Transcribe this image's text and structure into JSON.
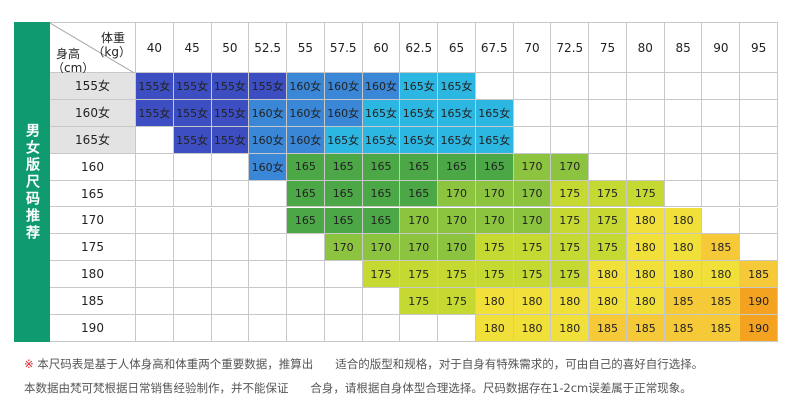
{
  "side_label": "男女版尺码推荐",
  "header": {
    "weight": "体重",
    "weight_unit": "（kg）",
    "height": "身高",
    "height_unit": "（cm）"
  },
  "weights": [
    40,
    45,
    50,
    52.5,
    55,
    57.5,
    60,
    62.5,
    65,
    67.5,
    70,
    72.5,
    75,
    80,
    85,
    90,
    95
  ],
  "rows": [
    {
      "height": "155女",
      "cells": [
        "155女",
        "155女",
        "155女",
        "155女",
        "160女",
        "160女",
        "160女",
        "165女",
        "165女",
        null,
        null,
        null,
        null,
        null,
        null,
        null,
        null
      ]
    },
    {
      "height": "160女",
      "cells": [
        "155女",
        "155女",
        "155女",
        "160女",
        "160女",
        "160女",
        "165女",
        "165女",
        "165女",
        "165女",
        null,
        null,
        null,
        null,
        null,
        null,
        null
      ]
    },
    {
      "height": "165女",
      "cells": [
        null,
        "155女",
        "155女",
        "160女",
        "160女",
        "165女",
        "165女",
        "165女",
        "165女",
        "165女",
        null,
        null,
        null,
        null,
        null,
        null,
        null
      ]
    },
    {
      "height": "160",
      "cells": [
        null,
        null,
        null,
        "160女",
        "165",
        "165",
        "165",
        "165",
        "165",
        "165",
        "170",
        "170",
        null,
        null,
        null,
        null,
        null
      ]
    },
    {
      "height": "165",
      "cells": [
        null,
        null,
        null,
        null,
        "165",
        "165",
        "165",
        "165",
        "170",
        "170",
        "170",
        "175",
        "175",
        "175",
        null,
        null,
        null
      ]
    },
    {
      "height": "170",
      "cells": [
        null,
        null,
        null,
        null,
        "165",
        "165",
        "165",
        "170",
        "170",
        "170",
        "170",
        "175",
        "175",
        "180",
        "180",
        null,
        null
      ]
    },
    {
      "height": "175",
      "cells": [
        null,
        null,
        null,
        null,
        null,
        "170",
        "170",
        "170",
        "170",
        "175",
        "175",
        "175",
        "175",
        "180",
        "180",
        "185",
        null
      ]
    },
    {
      "height": "180",
      "cells": [
        null,
        null,
        null,
        null,
        null,
        null,
        "175",
        "175",
        "175",
        "175",
        "175",
        "175",
        "180",
        "180",
        "180",
        "180",
        "185"
      ]
    },
    {
      "height": "185",
      "cells": [
        null,
        null,
        null,
        null,
        null,
        null,
        null,
        "175",
        "175",
        "180",
        "180",
        "180",
        "180",
        "180",
        "185",
        "185",
        "190"
      ]
    },
    {
      "height": "190",
      "cells": [
        null,
        null,
        null,
        null,
        null,
        null,
        null,
        null,
        null,
        "180",
        "180",
        "180",
        "185",
        "185",
        "185",
        "185",
        "190"
      ]
    }
  ],
  "cell_colors": {
    "155女": "#3c4ec2",
    "160女": "#3a87d8",
    "165女": "#2cb6e2",
    "165": "#4ca846",
    "170": "#8dc43f",
    "175": "#c6d932",
    "180": "#f1df3a",
    "185": "#f6c938",
    "190": "#f4a321"
  },
  "notes": [
    {
      "mark": "※",
      "text": "本尺码表是基于人体身高和体重两个重要数据，推算出      适合的版型和规格，对于自身有特殊需求的，可由自己的喜好自行选择。"
    },
    {
      "text": "本数据由梵可梵根据日常销售经验制作，并不能保证      合身，请根据自身体型合理选择。尺码数据存在1-2cm误差属于正常现象。"
    }
  ]
}
